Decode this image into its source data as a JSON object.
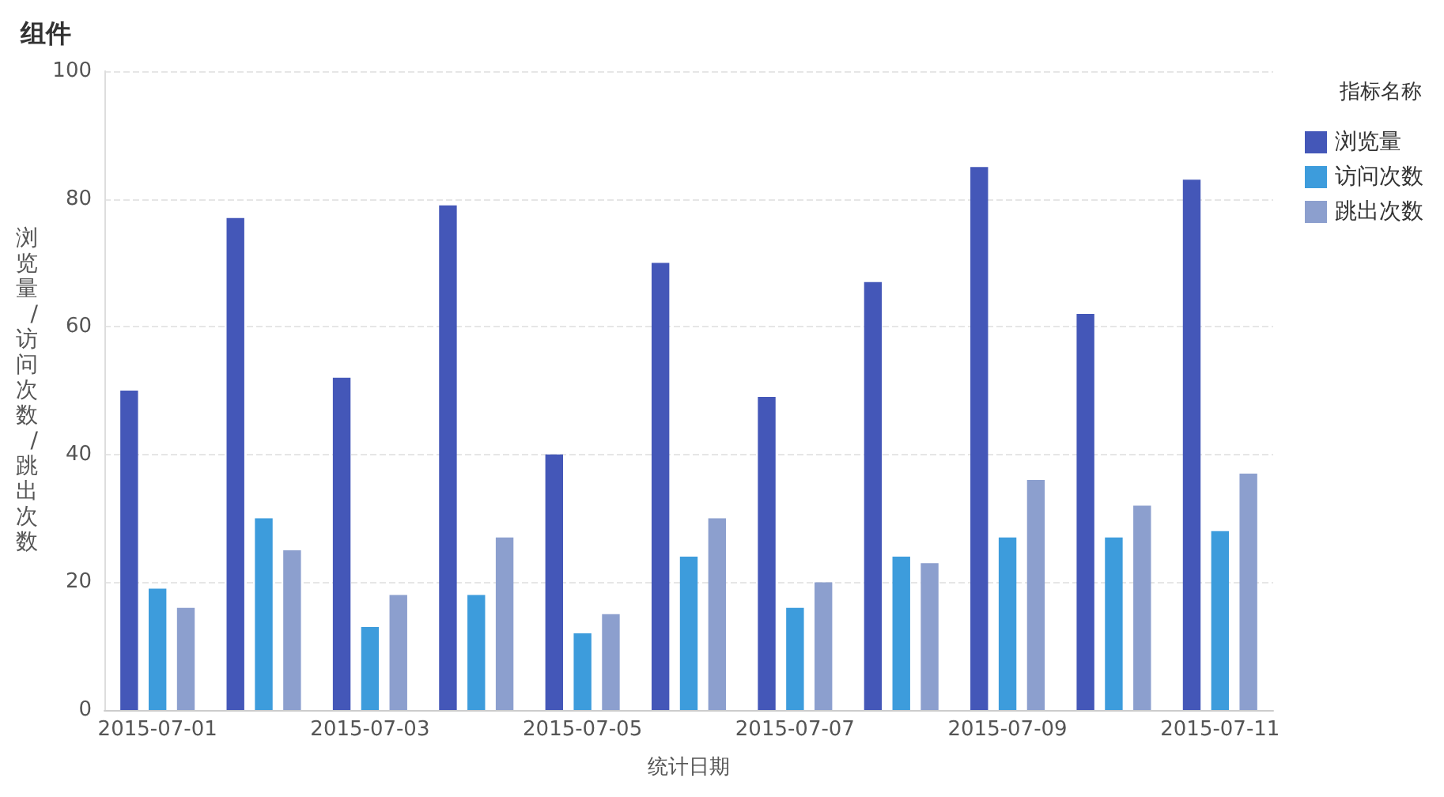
{
  "chart_data": {
    "type": "bar",
    "title": "组件",
    "xlabel": "统计日期",
    "ylabel": "浏览量/访问次数/跳出次数",
    "legend_title": "指标名称",
    "categories": [
      "2015-07-01",
      null,
      "2015-07-03",
      null,
      "2015-07-05",
      null,
      "2015-07-07",
      null,
      "2015-07-09",
      null,
      "2015-07-11"
    ],
    "series": [
      {
        "name": "浏览量",
        "color": "#4457b8",
        "values": [
          50,
          77,
          52,
          79,
          40,
          70,
          49,
          67,
          85,
          62,
          83
        ]
      },
      {
        "name": "访问次数",
        "color": "#3d9cdc",
        "values": [
          19,
          30,
          13,
          18,
          12,
          24,
          16,
          24,
          27,
          27,
          28
        ]
      },
      {
        "name": "跳出次数",
        "color": "#8c9fce",
        "values": [
          16,
          25,
          18,
          27,
          15,
          30,
          20,
          23,
          36,
          32,
          37
        ]
      }
    ],
    "ylim": [
      0,
      100
    ],
    "yticks": [
      0,
      20,
      40,
      60,
      80,
      100
    ],
    "grid": "y",
    "legend": "top right"
  }
}
